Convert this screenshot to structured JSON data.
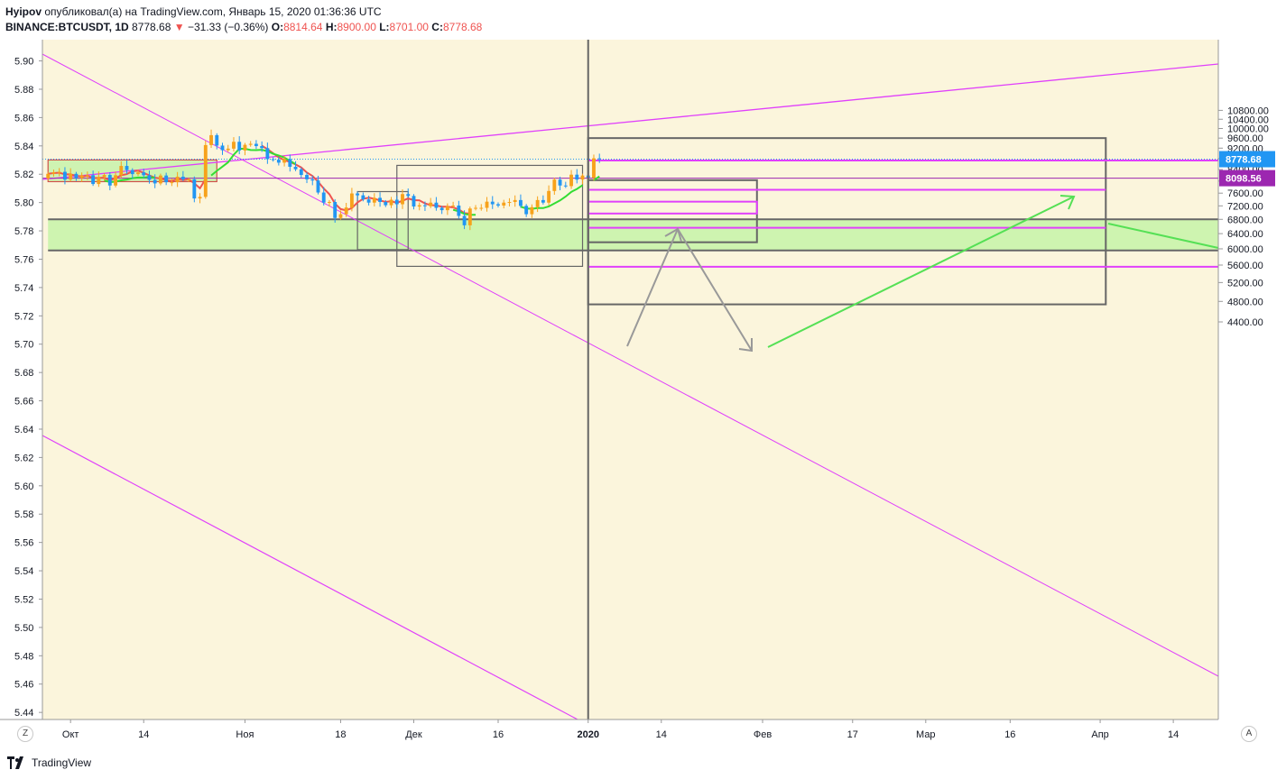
{
  "header": {
    "author": "Hyipov",
    "published_text": "опубликовал(а) на TradingView.com, Январь 15, 2020 01:36:36 UTC",
    "symbol": "BINANCE:BTCUSDT, 1D",
    "last": "8778.68",
    "arrow": "▼",
    "change": "−31.33 (−0.36%)",
    "o_label": "O:",
    "o_value": "8814.64",
    "h_label": "H:",
    "h_value": "8900.00",
    "l_label": "L:",
    "l_value": "8701.00",
    "c_label": "C:",
    "c_value": "8778.68"
  },
  "footer": {
    "brand": "TradingView",
    "logo_icon": "tradingview-logo-icon"
  },
  "buttons": {
    "log_scale": "Z",
    "auto_scale": "A"
  },
  "colors": {
    "background": "#fbf5dc",
    "bull": "#f7a21b",
    "bear": "#2196f3",
    "magenta": "#e040fb",
    "zone_green": "#c5f3a8",
    "gray": "#666666",
    "ma_red": "#ef5350",
    "ma_green": "#33dd33",
    "arrow_green": "#55e055",
    "price_tag_blue": "#2196f3",
    "price_tag_purple": "#9c27b0"
  },
  "chart_data": {
    "type": "candlestick",
    "symbol": "BINANCE:BTCUSDT",
    "interval": "1D",
    "left_axis": {
      "ticks": [
        "5.90",
        "5.88",
        "5.86",
        "5.84",
        "5.82",
        "5.80",
        "5.78",
        "5.76",
        "5.74",
        "5.72",
        "5.70",
        "5.68",
        "5.66",
        "5.64",
        "5.62",
        "5.60",
        "5.58",
        "5.56",
        "5.54",
        "5.52",
        "5.50",
        "5.48",
        "5.46",
        "5.44"
      ],
      "range": [
        5.435,
        5.915
      ]
    },
    "right_axis": {
      "ticks": [
        "10800.00",
        "10400.00",
        "10000.00",
        "9600.00",
        "9200.00",
        "8800.00",
        "8400.00",
        "8000.00",
        "7600.00",
        "7200.00",
        "6800.00",
        "6400.00",
        "6000.00",
        "5600.00",
        "5200.00",
        "4800.00",
        "4400.00"
      ],
      "scale": "log"
    },
    "x_axis": {
      "range": [
        "2019-09-26",
        "2020-04-22"
      ],
      "labels": [
        {
          "date": "2019-10-01",
          "text": "Окт"
        },
        {
          "date": "2019-10-14",
          "text": "14"
        },
        {
          "date": "2019-11-01",
          "text": "Ноя"
        },
        {
          "date": "2019-11-18",
          "text": "18"
        },
        {
          "date": "2019-12-01",
          "text": "Дек"
        },
        {
          "date": "2019-12-16",
          "text": "16"
        },
        {
          "date": "2020-01-01",
          "text": "2020",
          "bold": true
        },
        {
          "date": "2020-01-14",
          "text": "14"
        },
        {
          "date": "2020-02-01",
          "text": "Фев"
        },
        {
          "date": "2020-02-17",
          "text": "17"
        },
        {
          "date": "2020-03-01",
          "text": "Мар"
        },
        {
          "date": "2020-03-16",
          "text": "16"
        },
        {
          "date": "2020-04-01",
          "text": "Апр"
        },
        {
          "date": "2020-04-14",
          "text": "14"
        }
      ]
    },
    "candles_start_date": "2019-09-27",
    "closes": [
      8250,
      8300,
      8320,
      8050,
      8250,
      8100,
      8200,
      8200,
      7900,
      8140,
      8210,
      7850,
      8200,
      8530,
      8380,
      8240,
      8300,
      8200,
      8040,
      7920,
      8190,
      7960,
      7960,
      8150,
      8060,
      8060,
      7430,
      7480,
      9320,
      9720,
      9300,
      9120,
      9180,
      9450,
      9110,
      9330,
      9370,
      9280,
      9200,
      8780,
      8760,
      8650,
      8780,
      8500,
      8410,
      8210,
      8060,
      8020,
      7620,
      7300,
      7320,
      6840,
      6950,
      7150,
      7590,
      7530,
      7400,
      7300,
      7450,
      7320,
      7220,
      7390,
      7250,
      7570,
      7510,
      7180,
      7220,
      7190,
      7300,
      7140,
      7070,
      7190,
      7210,
      6900,
      6630,
      7120,
      7140,
      7140,
      7330,
      7250,
      7210,
      7300,
      7320,
      7380,
      7200,
      6950,
      7160,
      7380,
      7300,
      7670,
      8050,
      7850,
      7830,
      8220,
      8050,
      8190,
      8110,
      8810,
      8778.68
    ],
    "price_lines": [
      {
        "label": "8778.68",
        "value": 8778.68
      },
      {
        "label": "8098.56",
        "value": 8098.56
      }
    ],
    "ma_red": {
      "start_date": "2019-09-27",
      "start_index": 0
    },
    "ma_green_segments": [
      {
        "from": "2019-10-07",
        "to": "2019-10-16"
      },
      {
        "from": "2019-10-26",
        "to": "2019-11-10"
      },
      {
        "from": "2019-12-08",
        "to": "2019-12-12"
      },
      {
        "from": "2019-12-20",
        "to": "2019-12-31"
      },
      {
        "from": "2020-01-02",
        "to": "2020-01-15"
      }
    ],
    "zones": [
      {
        "kind": "support",
        "from": "2019-09-27",
        "to": "2020-04-22",
        "high": 6800,
        "low": 5960
      },
      {
        "kind": "range-box",
        "from": "2019-09-27",
        "to": "2019-10-27",
        "high": 8750,
        "low": 7980
      }
    ],
    "drawings": [
      {
        "kind": "projection-box",
        "from": "2020-01-01",
        "to": "2020-04-02",
        "high": 9600,
        "low": 4740
      },
      {
        "kind": "projection-box",
        "from": "2020-01-01",
        "to": "2020-01-31",
        "high": 8030,
        "low": 6170
      },
      {
        "kind": "box",
        "from": "2019-11-21",
        "to": "2019-11-30",
        "high": 7650,
        "low": 5980
      },
      {
        "kind": "box",
        "from": "2019-11-28",
        "to": "2019-12-31",
        "high": 8550,
        "low": 5570
      },
      {
        "kind": "level",
        "from": "2020-01-01",
        "to": "2020-04-22",
        "value": 8730
      },
      {
        "kind": "level",
        "from": "2020-01-01",
        "to": "2020-04-02",
        "value": 7710
      },
      {
        "kind": "level",
        "from": "2020-01-01",
        "to": "2020-04-02",
        "value": 6560
      },
      {
        "kind": "level",
        "from": "2020-01-01",
        "to": "2020-04-22",
        "value": 5560
      },
      {
        "kind": "level-box",
        "from": "2020-01-01",
        "to": "2020-01-31",
        "high": 7330,
        "low": 6970
      }
    ]
  }
}
